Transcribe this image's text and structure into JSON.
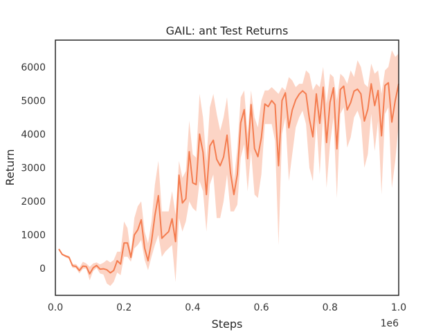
{
  "chart_data": {
    "type": "line",
    "title": "GAIL: ant Test Returns",
    "xlabel": "Steps",
    "ylabel": "Return",
    "x_offset_label": "1e6",
    "xlim": [
      0,
      1.0
    ],
    "ylim": [
      -800,
      6800
    ],
    "x_ticks": [
      0.0,
      0.2,
      0.4,
      0.6,
      0.8,
      1.0
    ],
    "x_tick_labels": [
      "0.0",
      "0.2",
      "0.4",
      "0.6",
      "0.8",
      "1.0"
    ],
    "y_ticks": [
      0,
      1000,
      2000,
      3000,
      4000,
      5000,
      6000
    ],
    "y_tick_labels": [
      "0",
      "1000",
      "2000",
      "3000",
      "4000",
      "5000",
      "6000"
    ],
    "grid": false,
    "colors": {
      "line": "#f47c4f",
      "band": "#f9a98b"
    },
    "series": [
      {
        "x": [
          0.01,
          0.02,
          0.03,
          0.04,
          0.05,
          0.06,
          0.07,
          0.08,
          0.09,
          0.1,
          0.11,
          0.12,
          0.13,
          0.14,
          0.15,
          0.16,
          0.17,
          0.18,
          0.19,
          0.2,
          0.21,
          0.22,
          0.23,
          0.24,
          0.25,
          0.26,
          0.27,
          0.28,
          0.29,
          0.3,
          0.31,
          0.32,
          0.33,
          0.34,
          0.35,
          0.36,
          0.37,
          0.38,
          0.39,
          0.4,
          0.41,
          0.42,
          0.43,
          0.44,
          0.45,
          0.46,
          0.47,
          0.48,
          0.49,
          0.5,
          0.51,
          0.52,
          0.53,
          0.54,
          0.55,
          0.56,
          0.57,
          0.58,
          0.59,
          0.6,
          0.61,
          0.62,
          0.63,
          0.64,
          0.65,
          0.66,
          0.67,
          0.68,
          0.69,
          0.7,
          0.71,
          0.72,
          0.73,
          0.74,
          0.75,
          0.76,
          0.77,
          0.78,
          0.79,
          0.8,
          0.81,
          0.82,
          0.83,
          0.84,
          0.85,
          0.86,
          0.87,
          0.88,
          0.89,
          0.9,
          0.91,
          0.92,
          0.93,
          0.94,
          0.95,
          0.96,
          0.97,
          0.98,
          0.99,
          1.0
        ],
        "y": [
          580,
          420,
          370,
          330,
          80,
          60,
          -60,
          70,
          60,
          -160,
          20,
          90,
          -20,
          -10,
          -40,
          -130,
          -60,
          230,
          130,
          760,
          760,
          330,
          1000,
          1150,
          1450,
          600,
          230,
          800,
          1580,
          2170,
          900,
          1000,
          1100,
          1480,
          800,
          2780,
          1950,
          2080,
          3480,
          2550,
          2500,
          4000,
          3460,
          2200,
          3650,
          3820,
          3250,
          3060,
          3320,
          3970,
          2850,
          2200,
          2800,
          4340,
          4730,
          3270,
          4880,
          3570,
          3330,
          3900,
          4900,
          4820,
          5000,
          4880,
          3060,
          5000,
          5230,
          4190,
          4720,
          5020,
          5190,
          5290,
          5200,
          4450,
          3920,
          5200,
          4320,
          5400,
          3750,
          4950,
          5380,
          3560,
          5330,
          5430,
          4720,
          4940,
          5280,
          5340,
          5200,
          4390,
          4740,
          5500,
          4850,
          5300,
          3950,
          5450,
          5530,
          4360,
          5000,
          5500
        ],
        "y_low": [
          580,
          400,
          330,
          290,
          20,
          10,
          -150,
          -10,
          0,
          -350,
          -80,
          20,
          -150,
          -180,
          -450,
          -520,
          -400,
          -120,
          -200,
          350,
          350,
          200,
          600,
          700,
          850,
          250,
          -50,
          350,
          700,
          1000,
          350,
          500,
          600,
          700,
          -400,
          1500,
          1100,
          1400,
          2000,
          1800,
          1700,
          2600,
          2300,
          1100,
          2500,
          2800,
          1500,
          1500,
          2000,
          2800,
          1700,
          1700,
          1900,
          3300,
          3700,
          2300,
          3500,
          2200,
          2100,
          2800,
          4300,
          4300,
          4300,
          3800,
          700,
          4000,
          4500,
          2600,
          3400,
          4200,
          4500,
          4700,
          4300,
          3000,
          2600,
          4400,
          2800,
          4600,
          2400,
          3700,
          4500,
          2100,
          4600,
          4800,
          3600,
          3900,
          4500,
          4700,
          4400,
          3000,
          3400,
          4600,
          3500,
          4400,
          2200,
          4600,
          4800,
          2400,
          3200,
          4300
        ],
        "y_high": [
          580,
          430,
          400,
          370,
          130,
          130,
          20,
          200,
          150,
          50,
          150,
          180,
          120,
          170,
          250,
          180,
          250,
          500,
          500,
          1400,
          1200,
          450,
          1500,
          1850,
          2000,
          1100,
          750,
          1400,
          2500,
          3200,
          1700,
          1700,
          1700,
          2300,
          1600,
          3200,
          2700,
          2900,
          4400,
          3400,
          3300,
          5200,
          4500,
          3200,
          4800,
          5200,
          4600,
          4100,
          4500,
          5100,
          3900,
          2600,
          3600,
          5100,
          5300,
          4000,
          5300,
          4500,
          4200,
          5000,
          5300,
          5300,
          5400,
          5300,
          5200,
          5400,
          5300,
          5700,
          5600,
          5400,
          5500,
          5500,
          5900,
          5800,
          5300,
          5500,
          5400,
          6000,
          4900,
          5800,
          5700,
          5000,
          5800,
          5700,
          5500,
          5900,
          5700,
          6200,
          6000,
          5500,
          5400,
          6100,
          5800,
          5900,
          5200,
          5900,
          6000,
          6500,
          6300,
          6400
        ]
      }
    ]
  }
}
